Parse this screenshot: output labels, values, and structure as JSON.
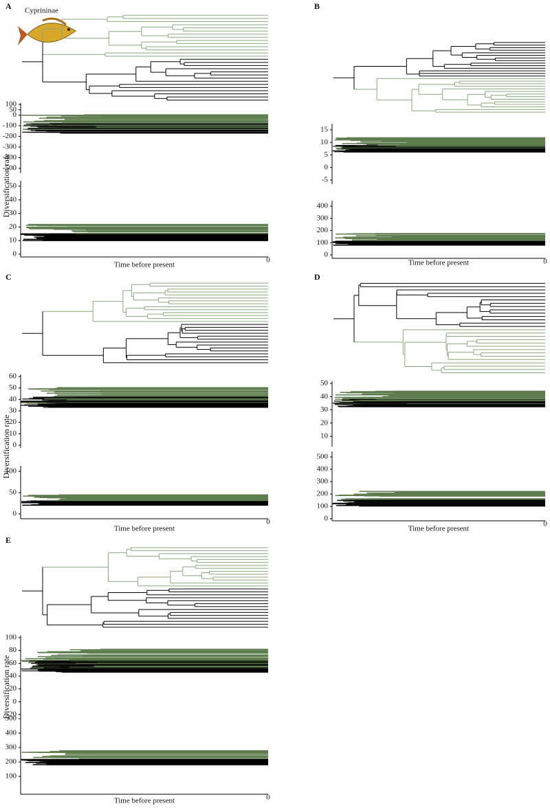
{
  "panels": [
    {
      "letter": "A",
      "caption": "Cyprininae",
      "y_label": "Diversification rate",
      "rate_ticks": [
        100,
        50,
        0,
        -100,
        -200,
        -300,
        -400,
        -500
      ],
      "lower_ticks": [
        50,
        40,
        30,
        20,
        10,
        0
      ],
      "x_label": "Time before present",
      "x_end": 0
    },
    {
      "letter": "B",
      "rate_ticks": [
        15,
        10,
        5,
        0,
        -5
      ],
      "lower_ticks": [
        400,
        300,
        200,
        100,
        0
      ],
      "x_label": "Time before present",
      "x_end": 0
    },
    {
      "letter": "C",
      "y_label": "Diversification rate",
      "rate_ticks": [
        60,
        50,
        40,
        30,
        20,
        10,
        0
      ],
      "lower_ticks": [
        100,
        50,
        0
      ],
      "x_label": "Time before present",
      "x_end": 0
    },
    {
      "letter": "D",
      "rate_ticks": [
        50,
        40,
        30,
        20,
        10
      ],
      "lower_ticks": [
        500,
        400,
        300,
        200,
        100,
        0
      ],
      "x_label": "Time before present",
      "x_end": 0
    },
    {
      "letter": "E",
      "y_label": "Diversification rate",
      "rate_ticks": [
        100,
        80,
        60,
        40,
        20,
        0,
        -20
      ],
      "lower_ticks": [
        500,
        400,
        300,
        200,
        100
      ],
      "x_label": "Time before present",
      "x_end": 0
    }
  ]
}
